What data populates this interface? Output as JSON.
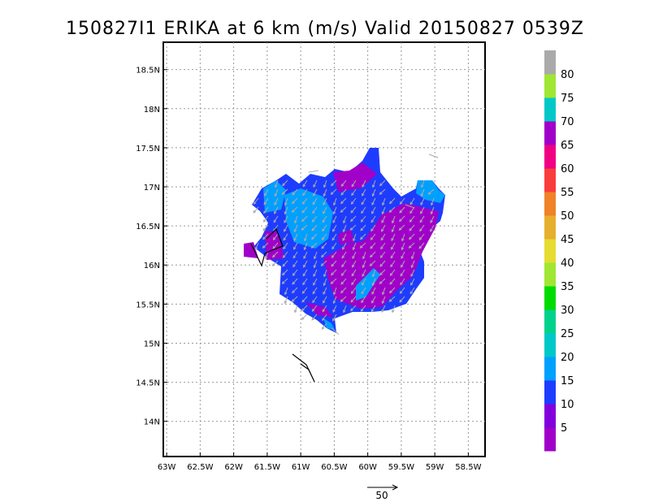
{
  "title": "150827I1 ERIKA at 6 km (m/s) Valid 20150827 0539Z",
  "map": {
    "lat_ticks": [
      {
        "value": 18.5,
        "label": "18.5N"
      },
      {
        "value": 18.0,
        "label": "18N"
      },
      {
        "value": 17.5,
        "label": "17.5N"
      },
      {
        "value": 17.0,
        "label": "17N"
      },
      {
        "value": 16.5,
        "label": "16.5N"
      },
      {
        "value": 16.0,
        "label": "16N"
      },
      {
        "value": 15.5,
        "label": "15.5N"
      },
      {
        "value": 15.0,
        "label": "15N"
      },
      {
        "value": 14.5,
        "label": "14.5N"
      },
      {
        "value": 14.0,
        "label": "14N"
      }
    ],
    "lon_ticks": [
      {
        "value": -63.0,
        "label": "63W"
      },
      {
        "value": -62.5,
        "label": "62.5W"
      },
      {
        "value": -62.0,
        "label": "62W"
      },
      {
        "value": -61.5,
        "label": "61.5W"
      },
      {
        "value": -61.0,
        "label": "61W"
      },
      {
        "value": -60.5,
        "label": "60.5W"
      },
      {
        "value": -60.0,
        "label": "60W"
      },
      {
        "value": -59.5,
        "label": "59.5W"
      },
      {
        "value": -59.0,
        "label": "59W"
      },
      {
        "value": -58.5,
        "label": "58.5W"
      }
    ],
    "lon_range": [
      -63.05,
      -58.25
    ],
    "lat_range": [
      13.55,
      18.85
    ],
    "gridlines": true
  },
  "colorbar": {
    "levels": [
      {
        "label": "",
        "color": "#a000c8"
      },
      {
        "label": "5",
        "color": "#8200dc"
      },
      {
        "label": "10",
        "color": "#1e3cff"
      },
      {
        "label": "15",
        "color": "#00a0ff"
      },
      {
        "label": "20",
        "color": "#00c8c8"
      },
      {
        "label": "25",
        "color": "#00d28c"
      },
      {
        "label": "30",
        "color": "#00dc00"
      },
      {
        "label": "35",
        "color": "#a0e632"
      },
      {
        "label": "40",
        "color": "#e6dc32"
      },
      {
        "label": "45",
        "color": "#e6af2d"
      },
      {
        "label": "50",
        "color": "#f08228"
      },
      {
        "label": "55",
        "color": "#fa3c3c"
      },
      {
        "label": "60",
        "color": "#f00082"
      },
      {
        "label": "65",
        "color": "#a000c8"
      },
      {
        "label": "70",
        "color": "#00c8c8"
      },
      {
        "label": "75",
        "color": "#a0e632"
      },
      {
        "label": "80",
        "color": "#aaaaaa"
      }
    ]
  },
  "reference_vector": {
    "label": "50"
  },
  "colors": {
    "wind_5_10": "#a000c8",
    "wind_10_15": "#1e3cff",
    "wind_15_20": "#00a0ff",
    "vector": "#aaaaaa",
    "track": "#000000"
  }
}
